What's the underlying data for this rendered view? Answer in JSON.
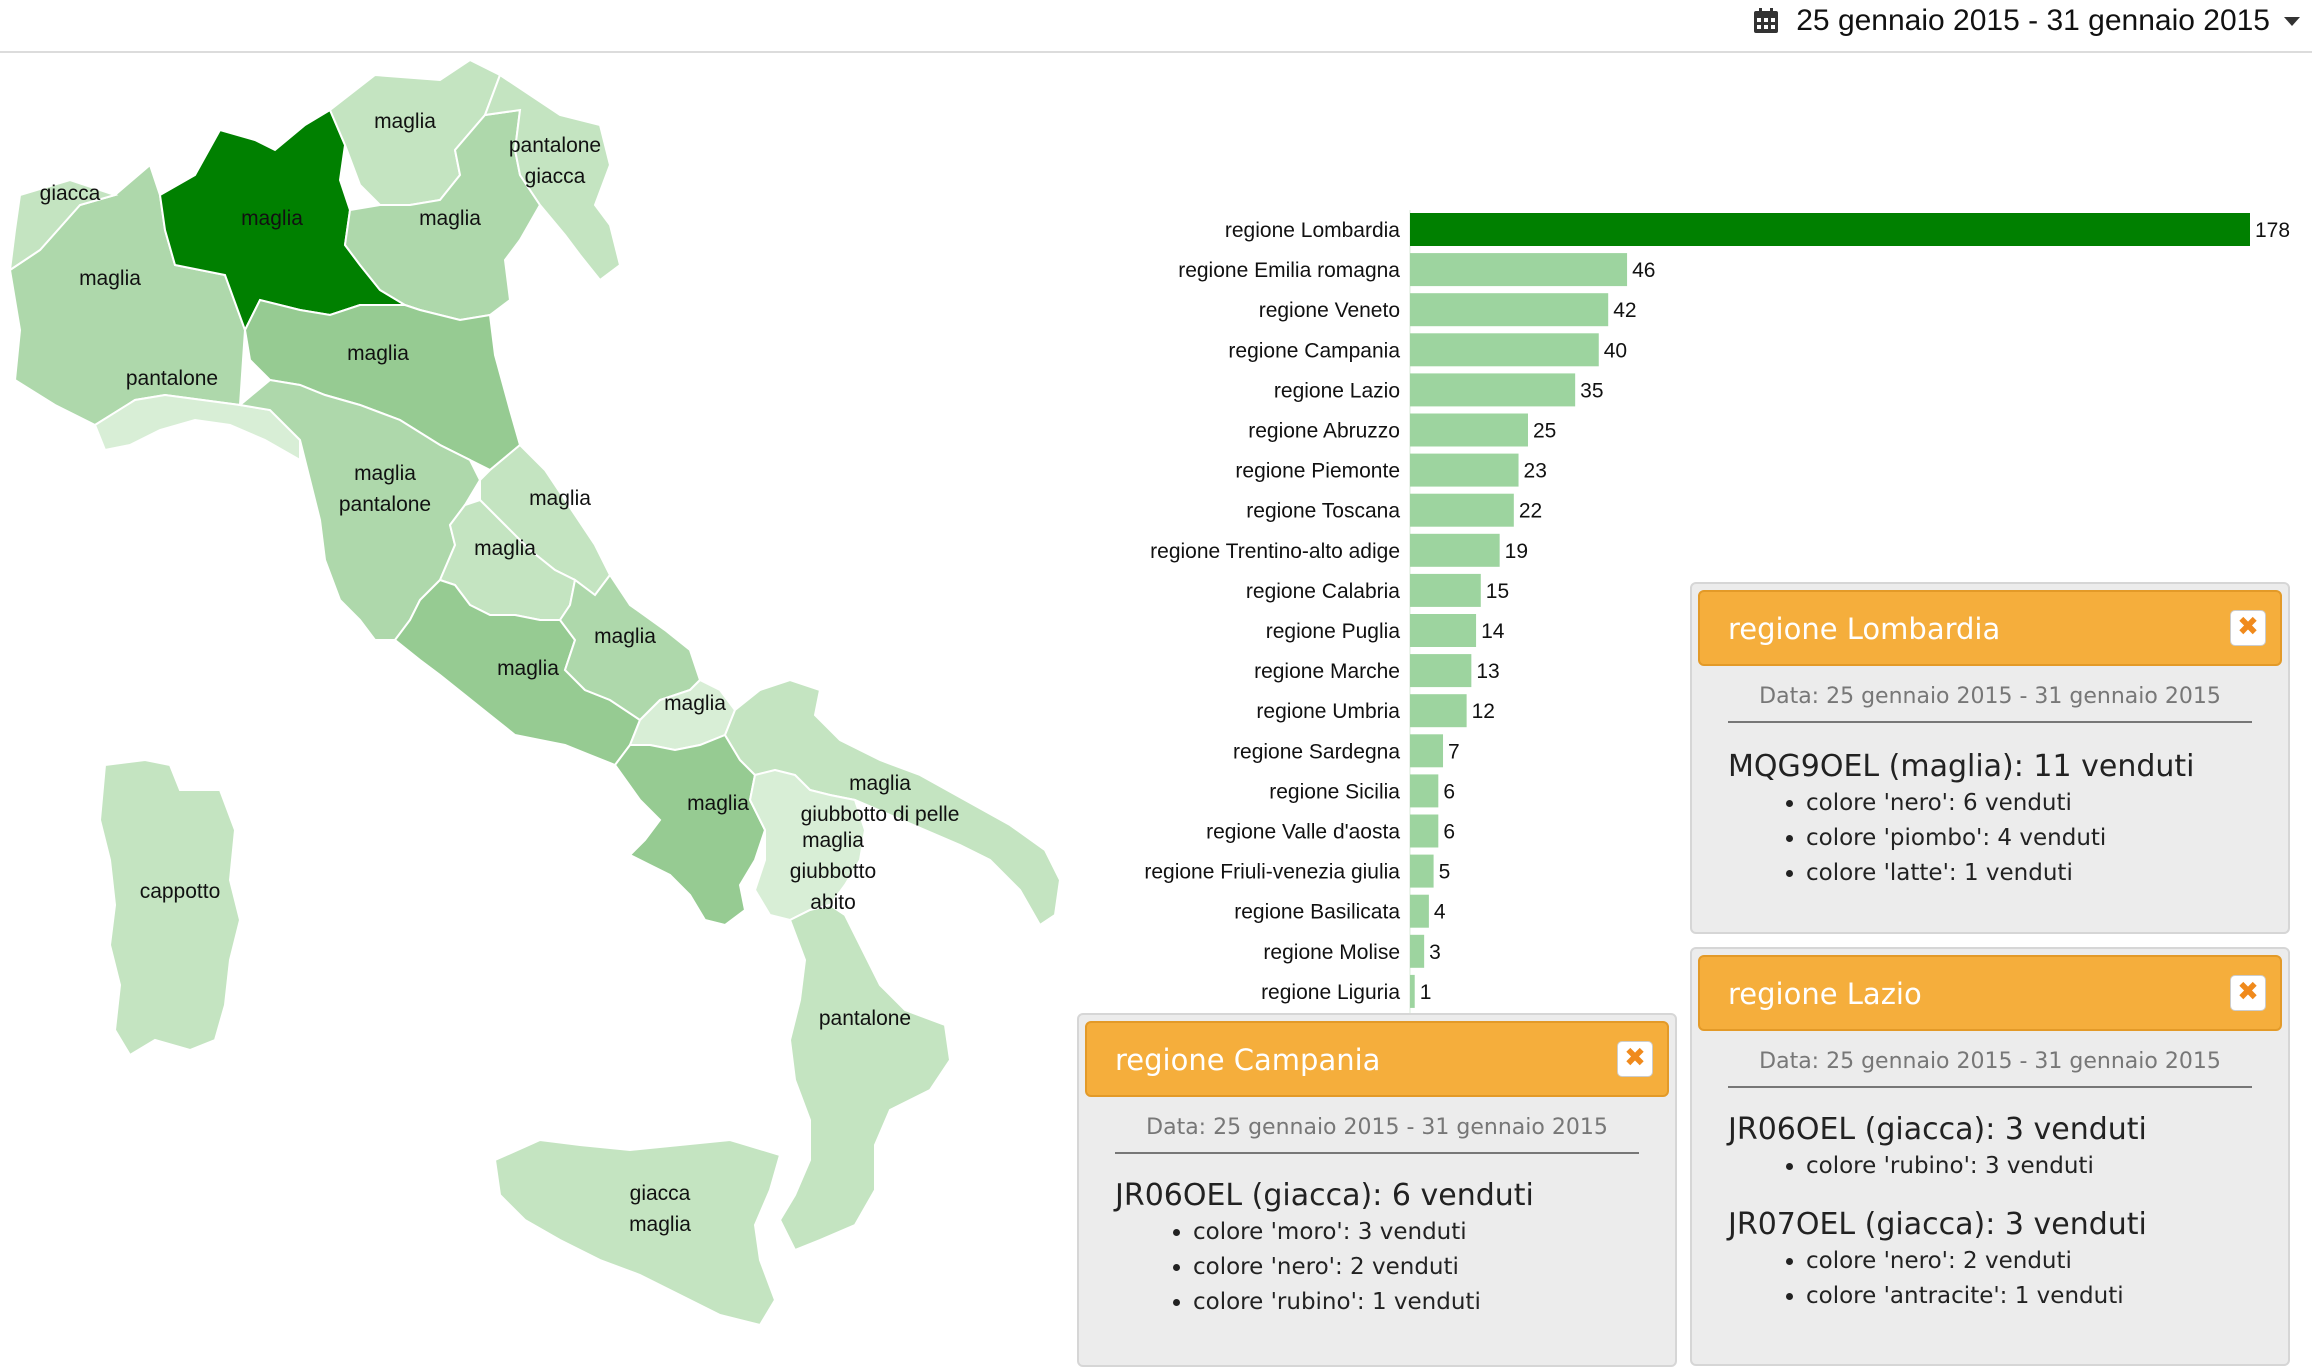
{
  "header": {
    "date_range": "25 gennaio 2015 - 31 gennaio 2015"
  },
  "map_regions": [
    {
      "name": "Piemonte",
      "labels": [
        "maglia"
      ],
      "shade": 2
    },
    {
      "name": "Valle d'Aosta",
      "labels": [
        "giacca"
      ],
      "shade": 1
    },
    {
      "name": "Lombardia",
      "labels": [
        "maglia"
      ],
      "shade": 5
    },
    {
      "name": "Trentino-Alto Adige",
      "labels": [
        "maglia"
      ],
      "shade": 1
    },
    {
      "name": "Veneto",
      "labels": [
        "maglia"
      ],
      "shade": 2
    },
    {
      "name": "Friuli-Venezia Giulia",
      "labels": [
        "pantalone",
        "giacca"
      ],
      "shade": 1
    },
    {
      "name": "Liguria",
      "labels": [
        "pantalone"
      ],
      "shade": 0
    },
    {
      "name": "Emilia-Romagna",
      "labels": [
        "maglia"
      ],
      "shade": 3
    },
    {
      "name": "Toscana",
      "labels": [
        "maglia",
        "pantalone"
      ],
      "shade": 2
    },
    {
      "name": "Marche",
      "labels": [
        "maglia"
      ],
      "shade": 1
    },
    {
      "name": "Umbria",
      "labels": [
        "maglia"
      ],
      "shade": 1
    },
    {
      "name": "Lazio",
      "labels": [
        "maglia"
      ],
      "shade": 3
    },
    {
      "name": "Abruzzo",
      "labels": [
        "maglia"
      ],
      "shade": 2
    },
    {
      "name": "Molise",
      "labels": [
        "maglia"
      ],
      "shade": 0
    },
    {
      "name": "Campania",
      "labels": [
        "maglia"
      ],
      "shade": 3
    },
    {
      "name": "Puglia",
      "labels": [
        "maglia",
        "giubbotto di pelle"
      ],
      "shade": 1
    },
    {
      "name": "Basilicata",
      "labels": [
        "maglia",
        "giubbotto",
        "abito"
      ],
      "shade": 0
    },
    {
      "name": "Calabria",
      "labels": [
        "pantalone"
      ],
      "shade": 1
    },
    {
      "name": "Sicilia",
      "labels": [
        "giacca",
        "maglia"
      ],
      "shade": 1
    },
    {
      "name": "Sardegna",
      "labels": [
        "cappotto"
      ],
      "shade": 1
    }
  ],
  "chart_data": {
    "type": "bar",
    "orientation": "horizontal",
    "categories": [
      "regione Lombardia",
      "regione Emilia romagna",
      "regione Veneto",
      "regione Campania",
      "regione Lazio",
      "regione Abruzzo",
      "regione Piemonte",
      "regione Toscana",
      "regione Trentino-alto adige",
      "regione Calabria",
      "regione Puglia",
      "regione Marche",
      "regione Umbria",
      "regione Sardegna",
      "regione Sicilia",
      "regione Valle d'aosta",
      "regione Friuli-venezia giulia",
      "regione Basilicata",
      "regione Molise",
      "regione Liguria"
    ],
    "values": [
      178,
      46,
      42,
      40,
      35,
      25,
      23,
      22,
      19,
      15,
      14,
      13,
      12,
      7,
      6,
      6,
      5,
      4,
      3,
      1
    ],
    "highlight": "regione Lombardia",
    "colors": {
      "highlight": "#008000",
      "bar": "#9dd49f"
    },
    "xlim": [
      0,
      178
    ],
    "grid": false
  },
  "panels": [
    {
      "title": "regione Lombardia",
      "close": "✖",
      "dates": "Data: 25 gennaio 2015 - 31 gennaio 2015",
      "products": [
        {
          "title": "MQG9OEL (maglia): 11 venduti",
          "items": [
            "colore 'nero': 6 venduti",
            "colore 'piombo': 4 venduti",
            "colore 'latte': 1 venduti"
          ]
        }
      ]
    },
    {
      "title": "regione Lazio",
      "close": "✖",
      "dates": "Data: 25 gennaio 2015 - 31 gennaio 2015",
      "products": [
        {
          "title": "JR06OEL (giacca): 3 venduti",
          "items": [
            "colore 'rubino': 3 venduti"
          ]
        },
        {
          "title": "JR07OEL (giacca): 3 venduti",
          "items": [
            "colore 'nero': 2 venduti",
            "colore 'antracite': 1 venduti"
          ]
        }
      ]
    },
    {
      "title": "regione Campania",
      "close": "✖",
      "dates": "Data: 25 gennaio 2015 - 31 gennaio 2015",
      "products": [
        {
          "title": "JR06OEL (giacca): 6 venduti",
          "items": [
            "colore 'moro': 3 venduti",
            "colore 'nero': 2 venduti",
            "colore 'rubino': 1 venduti"
          ]
        }
      ]
    }
  ],
  "colors": {
    "accent": "#f5ae3c",
    "map_shades": [
      "#d8eed6",
      "#c4e4c1",
      "#aed8ab",
      "#96cb92",
      "#7cbf79",
      "#008000"
    ]
  }
}
